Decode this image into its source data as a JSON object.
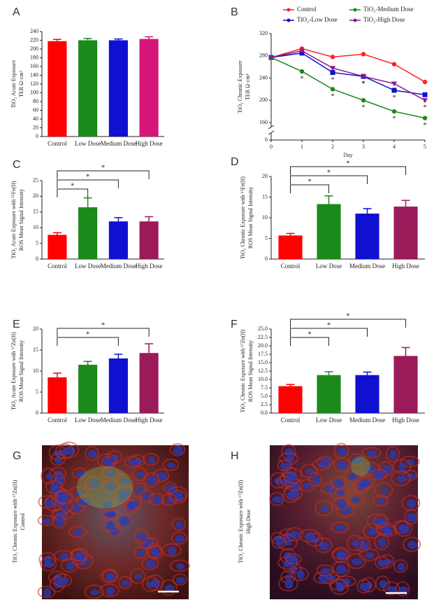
{
  "chart_data": [
    {
      "type": "bar",
      "panel": "A",
      "ylabel": [
        "TiO₂ Acute Exposure",
        "TER Ω·cm²"
      ],
      "categories": [
        "Control",
        "Low Dose",
        "Medium Dose",
        "High Dose"
      ],
      "values": [
        218,
        220,
        220,
        223
      ],
      "errors": [
        4,
        4,
        3,
        5
      ],
      "colors": [
        "#ff0000",
        "#1a8a1a",
        "#1010d0",
        "#d6157a"
      ],
      "ylim": [
        0,
        240
      ],
      "yticks": [
        0,
        20,
        40,
        60,
        80,
        100,
        120,
        140,
        160,
        180,
        200,
        220,
        240
      ]
    },
    {
      "type": "line",
      "panel": "B",
      "ylabel": [
        "TiO₂ Chronic Exposure",
        "TER Ω·cm²"
      ],
      "xlabel": "Day",
      "x": [
        0,
        1,
        2,
        3,
        4,
        5
      ],
      "xlim": [
        0,
        5
      ],
      "xticks": [
        0,
        1,
        2,
        3,
        4,
        5
      ],
      "ylim": [
        0,
        320
      ],
      "yticks": [
        0,
        160,
        200,
        240,
        280,
        320
      ],
      "axis_break": true,
      "series": [
        {
          "name": "Control",
          "color": "#ff2020",
          "values": [
            277,
            293,
            278,
            283,
            265,
            233
          ],
          "annotations": [
            null,
            null,
            null,
            null,
            null,
            null
          ]
        },
        {
          "name": "TiO₂-Low Dose",
          "color": "#1010d0",
          "values": [
            277,
            285,
            250,
            243,
            218,
            210
          ],
          "annotations": [
            null,
            null,
            "*",
            "*",
            "*",
            "*"
          ]
        },
        {
          "name": "TiO₂-Medium Dose",
          "color": "#1a8a1a",
          "values": [
            277,
            252,
            220,
            200,
            180,
            168
          ],
          "annotations": [
            null,
            "*",
            "*",
            "*",
            "*",
            "*"
          ]
        },
        {
          "name": "TiO₂-High Dose",
          "color": "#8a1a8a",
          "values": [
            277,
            289,
            258,
            243,
            230,
            200
          ],
          "annotations": [
            null,
            null,
            null,
            "*",
            "*",
            "*"
          ]
        }
      ]
    },
    {
      "type": "bar",
      "panel": "C",
      "ylabel": [
        "TiO₂ Acute Exposure with ⁶⁵Fe(II)",
        "ROS Mean Signal Intensity"
      ],
      "categories": [
        "Control",
        "Low Dose",
        "Medium Dose",
        "High Dose"
      ],
      "values": [
        7.7,
        16.5,
        12,
        12
      ],
      "errors": [
        0.7,
        3,
        1.2,
        1.5
      ],
      "colors": [
        "#ff0000",
        "#1a8a1a",
        "#1010d0",
        "#9b1a5a"
      ],
      "ylim": [
        0,
        25
      ],
      "yticks": [
        0,
        5,
        10,
        15,
        20,
        25
      ],
      "comparisons": [
        {
          "from": 0,
          "to": 1,
          "label": "*"
        },
        {
          "from": 0,
          "to": 2,
          "label": "*"
        },
        {
          "from": 0,
          "to": 3,
          "label": "*"
        }
      ]
    },
    {
      "type": "bar",
      "panel": "D",
      "ylabel": [
        "TiO₂ Chronic Exposure with ⁶⁵Fe(II)",
        "ROS Mean Signal Intensity"
      ],
      "categories": [
        "Control",
        "Low Dose",
        "Medium Dose",
        "High Dose"
      ],
      "values": [
        5.7,
        13.3,
        11,
        12.7
      ],
      "errors": [
        0.5,
        2,
        1.2,
        1.5
      ],
      "colors": [
        "#ff0000",
        "#1a8a1a",
        "#1010d0",
        "#9b1a5a"
      ],
      "ylim": [
        0,
        20
      ],
      "yticks": [
        0,
        5,
        10,
        15,
        20
      ],
      "comparisons": [
        {
          "from": 0,
          "to": 1,
          "label": "*"
        },
        {
          "from": 0,
          "to": 2,
          "label": "*"
        },
        {
          "from": 0,
          "to": 3,
          "label": "*"
        }
      ]
    },
    {
      "type": "bar",
      "panel": "E",
      "ylabel": [
        "TiO₂ Acute Exposure with ⁶⁷Zn(II)",
        "ROS Mean Signal Intensity"
      ],
      "categories": [
        "Control",
        "Low Dose",
        "Medium Dose",
        "High Dose"
      ],
      "values": [
        8.5,
        11.5,
        13,
        14.3
      ],
      "errors": [
        1,
        0.8,
        1,
        2.2
      ],
      "colors": [
        "#ff0000",
        "#1a8a1a",
        "#1010d0",
        "#9b1a5a"
      ],
      "ylim": [
        0,
        20
      ],
      "yticks": [
        0,
        5,
        10,
        15,
        20
      ],
      "comparisons": [
        {
          "from": 0,
          "to": 2,
          "label": "*"
        },
        {
          "from": 0,
          "to": 3,
          "label": "*"
        }
      ]
    },
    {
      "type": "bar",
      "panel": "F",
      "ylabel": [
        "TiO₂ Chronic Exposure with ⁶⁷Zn(II)",
        "ROS Mean Signal Intensity"
      ],
      "categories": [
        "Control",
        "Low Dose",
        "Medium Dose",
        "High Dose"
      ],
      "values": [
        8,
        11.3,
        11.3,
        17
      ],
      "errors": [
        0.5,
        1,
        0.9,
        2.5
      ],
      "colors": [
        "#ff0000",
        "#1a8a1a",
        "#1010d0",
        "#9b1a5a"
      ],
      "ylim": [
        0,
        25
      ],
      "yticks": [
        {
          "value": 0,
          "label": "0.0"
        },
        {
          "value": 2.5,
          "label": "2.5"
        },
        {
          "value": 5,
          "label": "5.0"
        },
        {
          "value": 7.5,
          "label": "7.5"
        },
        {
          "value": 10,
          "label": "10.0"
        },
        {
          "value": 12.5,
          "label": "12.5"
        },
        {
          "value": 15,
          "label": "15.0"
        },
        {
          "value": 17.5,
          "label": "17.5"
        },
        {
          "value": 20,
          "label": "20.0"
        },
        {
          "value": 22.5,
          "label": "22.5"
        },
        {
          "value": 25,
          "label": "25.0"
        }
      ],
      "comparisons": [
        {
          "from": 0,
          "to": 1,
          "label": "*"
        },
        {
          "from": 0,
          "to": 2,
          "label": "*"
        },
        {
          "from": 0,
          "to": 3,
          "label": "*"
        }
      ]
    }
  ],
  "images": [
    {
      "panel": "G",
      "ylabel": [
        "TiO₂ Chronic Exposure with ⁶⁷Zn(II)",
        "Control"
      ]
    },
    {
      "panel": "H",
      "ylabel": [
        "TiO₂ Chronic Exposure with ⁶⁷Zn(II)",
        "High Dose"
      ]
    }
  ]
}
